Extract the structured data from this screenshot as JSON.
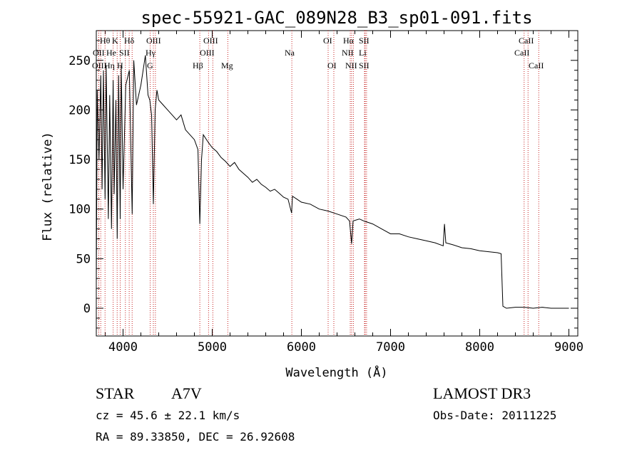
{
  "chart_data": {
    "type": "line",
    "title": "spec-55921-GAC_089N28_B3_sp01-091.fits",
    "xlabel": "Wavelength (Å)",
    "ylabel": "Flux (relative)",
    "xlim": [
      3700,
      9100
    ],
    "ylim": [
      -28,
      280
    ],
    "xticks": [
      4000,
      5000,
      6000,
      7000,
      8000,
      9000
    ],
    "yticks": [
      0,
      50,
      100,
      150,
      200,
      250
    ],
    "series": [
      {
        "name": "spectrum",
        "x": [
          3700,
          3710,
          3730,
          3750,
          3765,
          3780,
          3798,
          3810,
          3835,
          3850,
          3870,
          3889,
          3900,
          3920,
          3934,
          3950,
          3968,
          3980,
          4000,
          4030,
          4070,
          4102,
          4120,
          4150,
          4200,
          4250,
          4280,
          4300,
          4320,
          4340,
          4360,
          4380,
          4400,
          4450,
          4500,
          4550,
          4600,
          4650,
          4700,
          4750,
          4800,
          4840,
          4861,
          4880,
          4900,
          4950,
          5000,
          5050,
          5100,
          5150,
          5200,
          5250,
          5300,
          5350,
          5400,
          5450,
          5500,
          5550,
          5600,
          5650,
          5700,
          5750,
          5800,
          5850,
          5890,
          5900,
          5950,
          6000,
          6100,
          6200,
          6300,
          6400,
          6500,
          6540,
          6563,
          6580,
          6650,
          6700,
          6800,
          6900,
          7000,
          7100,
          7200,
          7300,
          7400,
          7500,
          7590,
          7605,
          7620,
          7700,
          7800,
          7900,
          8000,
          8100,
          8200,
          8240,
          8260,
          8300,
          8400,
          8500,
          8600,
          8700,
          8800,
          8900,
          9000
        ],
        "values": [
          25,
          220,
          150,
          235,
          120,
          240,
          110,
          245,
          90,
          215,
          80,
          230,
          115,
          210,
          70,
          235,
          90,
          245,
          120,
          225,
          240,
          95,
          250,
          205,
          225,
          255,
          215,
          210,
          195,
          105,
          200,
          220,
          210,
          205,
          200,
          195,
          190,
          195,
          180,
          175,
          170,
          160,
          85,
          150,
          175,
          168,
          162,
          158,
          152,
          148,
          143,
          147,
          140,
          136,
          132,
          127,
          130,
          125,
          122,
          118,
          120,
          116,
          112,
          110,
          96,
          113,
          110,
          107,
          105,
          100,
          98,
          95,
          92,
          88,
          65,
          88,
          90,
          88,
          85,
          80,
          75,
          75,
          72,
          70,
          68,
          66,
          63,
          85,
          66,
          64,
          61,
          60,
          58,
          57,
          56,
          55,
          2,
          0,
          1,
          1,
          0,
          1,
          0,
          0,
          0
        ]
      }
    ],
    "lines": [
      {
        "wave": 3750,
        "label": "Hθ"
      },
      {
        "wave": 3727,
        "label": "OII"
      },
      {
        "wave": 3727,
        "label": "OIII"
      },
      {
        "wave": 3798,
        "label": "Hη"
      },
      {
        "wave": 3889,
        "label": "He"
      },
      {
        "wave": 3934,
        "label": "K"
      },
      {
        "wave": 3968,
        "label": "H"
      },
      {
        "wave": 4026,
        "label": "He"
      },
      {
        "wave": 4069,
        "label": "SII"
      },
      {
        "wave": 4102,
        "label": "Hδ"
      },
      {
        "wave": 4304,
        "label": "G"
      },
      {
        "wave": 4340,
        "label": "Hγ"
      },
      {
        "wave": 4363,
        "label": "OIII"
      },
      {
        "wave": 4861,
        "label": "Hβ"
      },
      {
        "wave": 4959,
        "label": "OIII"
      },
      {
        "wave": 5007,
        "label": "OIII"
      },
      {
        "wave": 5175,
        "label": "Mg"
      },
      {
        "wave": 5893,
        "label": "Na"
      },
      {
        "wave": 6300,
        "label": "OI"
      },
      {
        "wave": 6364,
        "label": "OI"
      },
      {
        "wave": 6548,
        "label": "NII"
      },
      {
        "wave": 6563,
        "label": "Hα"
      },
      {
        "wave": 6583,
        "label": "NII"
      },
      {
        "wave": 6708,
        "label": "Li"
      },
      {
        "wave": 6716,
        "label": "SII"
      },
      {
        "wave": 6731,
        "label": "SII"
      },
      {
        "wave": 8498,
        "label": "CaII"
      },
      {
        "wave": 8542,
        "label": "CaII"
      },
      {
        "wave": 8662,
        "label": "CaII"
      }
    ]
  },
  "labels": {
    "top": [
      "Hθ",
      "K",
      "Hδ",
      "OIII",
      "OI",
      "Hα",
      "SII",
      "OIII",
      "CaII"
    ],
    "row2": [
      "OII",
      "He",
      "SII",
      "Hγ",
      "OIII",
      "Na",
      "NII",
      "Li",
      "CaII"
    ],
    "row3": [
      "OIII",
      "Hη",
      "H",
      "G",
      "Hβ",
      "Mg",
      "OI",
      "NII",
      "SII",
      "CaII"
    ]
  },
  "info": {
    "class": "STAR",
    "subclass": "A7V",
    "survey": "LAMOST DR3",
    "cz": "cz = 45.6 ± 22.1 km/s",
    "obs_date": "Obs-Date: 20111225",
    "coords": "RA =  89.33850, DEC =  26.92608"
  }
}
